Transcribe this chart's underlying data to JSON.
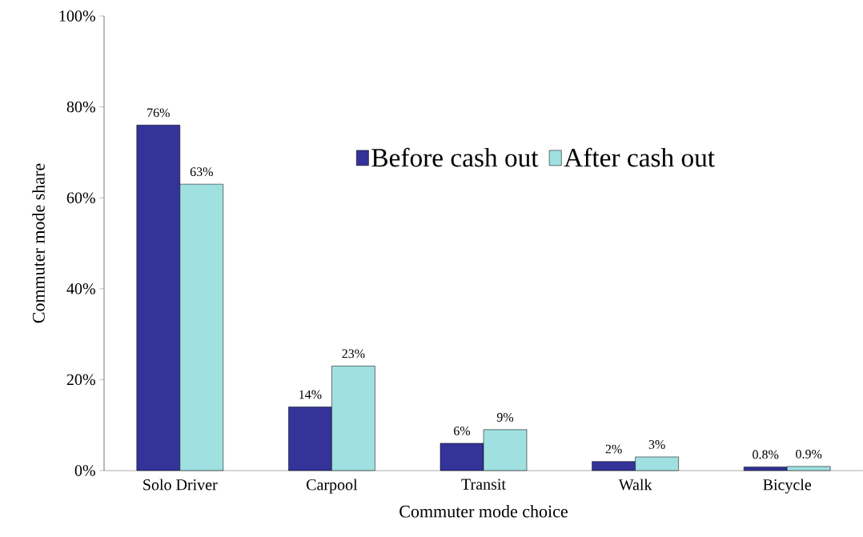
{
  "chart_data": {
    "type": "bar",
    "xlabel": "Commuter mode choice",
    "ylabel": "Commuter mode share",
    "categories": [
      "Solo Driver",
      "Carpool",
      "Transit",
      "Walk",
      "Bicycle"
    ],
    "series": [
      {
        "name": "Before cash out",
        "color": "#333399",
        "values": [
          76,
          14,
          6,
          2,
          0.8
        ],
        "value_labels": [
          "76%",
          "14%",
          "6%",
          "2%",
          "0.8%"
        ]
      },
      {
        "name": "After cash out",
        "color": "#a0e0e0",
        "values": [
          63,
          23,
          9,
          3,
          0.9
        ],
        "value_labels": [
          "63%",
          "23%",
          "9%",
          "3%",
          "0.9%"
        ]
      }
    ],
    "ylim": [
      0,
      100
    ],
    "yticks": [
      {
        "value": 0,
        "label": "0%"
      },
      {
        "value": 20,
        "label": "20%"
      },
      {
        "value": 40,
        "label": "40%"
      },
      {
        "value": 60,
        "label": "60%"
      },
      {
        "value": 80,
        "label": "80%"
      },
      {
        "value": 100,
        "label": "100%"
      }
    ],
    "legend": "top",
    "grid": false
  }
}
